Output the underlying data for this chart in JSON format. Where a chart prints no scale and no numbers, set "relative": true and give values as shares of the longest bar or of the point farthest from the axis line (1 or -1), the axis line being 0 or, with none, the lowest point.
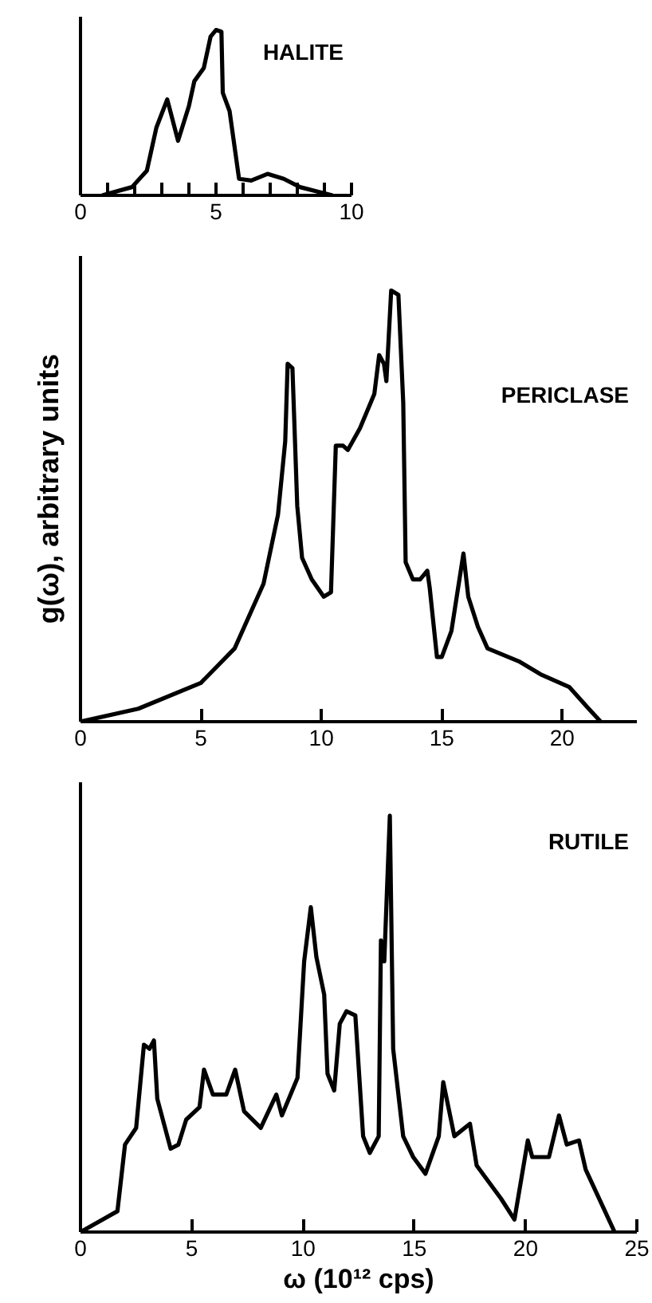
{
  "chart_data": [
    {
      "type": "line",
      "title": "HALITE",
      "relative": true,
      "color": "#000000",
      "xlim": [
        0,
        10
      ],
      "xticks": [
        0,
        {
          "value": 1,
          "label": null
        },
        {
          "value": 2,
          "label": null
        },
        {
          "value": 3,
          "label": null
        },
        {
          "value": 4,
          "label": null
        },
        5,
        {
          "value": 6,
          "label": null
        },
        {
          "value": 7,
          "label": null
        },
        {
          "value": 8,
          "label": null
        },
        {
          "value": 9,
          "label": null
        },
        10
      ],
      "grid": false,
      "x": [
        0.8,
        1.9,
        2.45,
        2.8,
        3.2,
        3.6,
        4.0,
        4.2,
        4.55,
        4.8,
        5.0,
        5.2,
        5.25,
        5.5,
        5.85,
        6.3,
        6.9,
        7.5,
        8.1,
        8.8,
        9.3
      ],
      "values": [
        0,
        0.05,
        0.15,
        0.41,
        0.58,
        0.33,
        0.54,
        0.69,
        0.77,
        0.96,
        1.0,
        0.99,
        0.62,
        0.51,
        0.1,
        0.09,
        0.13,
        0.1,
        0.05,
        0.02,
        0
      ]
    },
    {
      "type": "line",
      "title": "PERICLASE",
      "ylabel": "g(ω), arbitrary units",
      "relative": true,
      "color": "#000000",
      "xlim": [
        0,
        23.1
      ],
      "xticks": [
        0,
        5,
        10,
        15,
        20
      ],
      "grid": false,
      "x": [
        0,
        2.4,
        5.0,
        6.4,
        7.6,
        8.2,
        8.5,
        8.6,
        8.8,
        9.0,
        9.2,
        9.6,
        10.1,
        10.4,
        10.6,
        10.9,
        11.1,
        11.6,
        12.2,
        12.4,
        12.6,
        12.7,
        12.9,
        13.2,
        13.4,
        13.5,
        13.8,
        14.1,
        14.4,
        14.5,
        14.8,
        15.0,
        15.4,
        15.9,
        16.1,
        16.5,
        16.9,
        18.2,
        19.1,
        20.3,
        21.1,
        21.6
      ],
      "values": [
        0,
        0.03,
        0.09,
        0.17,
        0.32,
        0.48,
        0.65,
        0.83,
        0.82,
        0.5,
        0.38,
        0.33,
        0.29,
        0.3,
        0.64,
        0.64,
        0.63,
        0.68,
        0.76,
        0.85,
        0.83,
        0.79,
        1.0,
        0.99,
        0.74,
        0.37,
        0.33,
        0.33,
        0.35,
        0.31,
        0.15,
        0.15,
        0.21,
        0.39,
        0.29,
        0.22,
        0.17,
        0.14,
        0.11,
        0.08,
        0.03,
        0
      ]
    },
    {
      "type": "line",
      "title": "RUTILE",
      "xlabel": "ω (10¹² cps)",
      "relative": true,
      "color": "#000000",
      "xlim": [
        0,
        25
      ],
      "xticks": [
        0,
        5,
        10,
        15,
        20,
        25
      ],
      "grid": false,
      "x": [
        0,
        1.66,
        2.0,
        2.5,
        2.85,
        3.1,
        3.3,
        3.45,
        4.05,
        4.4,
        4.75,
        5.35,
        5.55,
        5.95,
        6.55,
        6.95,
        7.35,
        8.1,
        8.8,
        9.05,
        9.75,
        10.05,
        10.35,
        10.6,
        10.95,
        11.1,
        11.4,
        11.65,
        11.95,
        12.35,
        12.7,
        13.0,
        13.4,
        13.5,
        13.65,
        13.9,
        14.05,
        14.5,
        14.95,
        15.5,
        16.1,
        16.3,
        16.8,
        17.5,
        17.8,
        18.9,
        19.5,
        20.1,
        20.3,
        21.05,
        21.5,
        21.85,
        22.4,
        22.7,
        24.0
      ],
      "values": [
        0,
        0.05,
        0.21,
        0.25,
        0.45,
        0.44,
        0.46,
        0.32,
        0.2,
        0.21,
        0.27,
        0.3,
        0.39,
        0.33,
        0.33,
        0.39,
        0.29,
        0.25,
        0.33,
        0.28,
        0.37,
        0.65,
        0.78,
        0.66,
        0.57,
        0.38,
        0.34,
        0.5,
        0.53,
        0.52,
        0.23,
        0.19,
        0.23,
        0.7,
        0.65,
        1.0,
        0.44,
        0.23,
        0.18,
        0.14,
        0.23,
        0.36,
        0.23,
        0.26,
        0.16,
        0.08,
        0.03,
        0.22,
        0.18,
        0.18,
        0.28,
        0.21,
        0.22,
        0.15,
        0
      ]
    }
  ]
}
